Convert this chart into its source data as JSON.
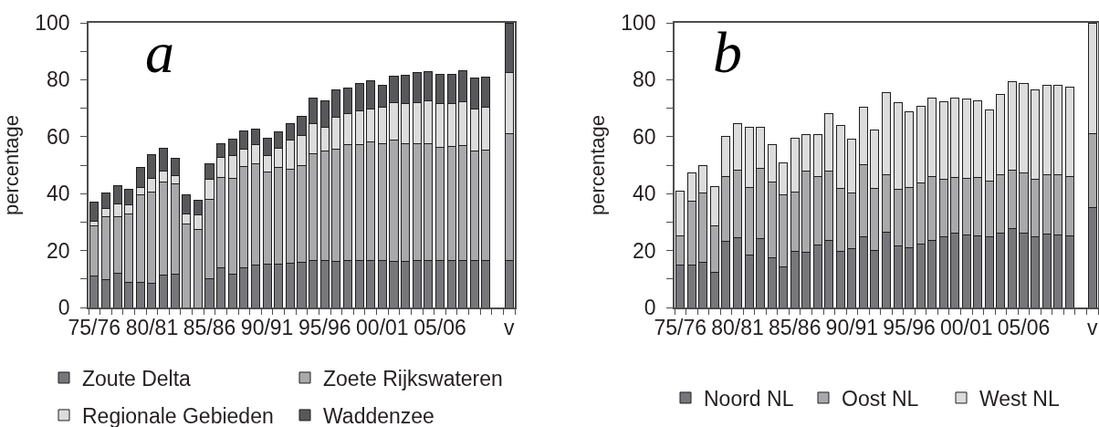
{
  "chart_data": [
    {
      "type": "bar",
      "title": "a",
      "ylabel": "percentage",
      "stacked": true,
      "legend": "bottom",
      "categories": [
        "75/76",
        null,
        null,
        null,
        null,
        "80/81",
        null,
        null,
        null,
        null,
        "85/86",
        null,
        null,
        null,
        null,
        "90/91",
        null,
        null,
        null,
        null,
        "95/96",
        null,
        null,
        null,
        null,
        "00/01",
        null,
        null,
        null,
        null,
        "05/06",
        null,
        null,
        null,
        null,
        null,
        "v"
      ],
      "series": [
        {
          "name": "Zoute Delta",
          "color": "#77777b",
          "values": [
            11.0,
            9.9,
            12.1,
            8.8,
            8.8,
            8.4,
            11.4,
            11.8,
            null,
            null,
            10.2,
            14.1,
            11.7,
            13.8,
            14.9,
            15.2,
            15.3,
            15.7,
            15.9,
            16.5,
            16.6,
            16.1,
            16.4,
            16.4,
            16.5,
            16.5,
            16.3,
            16.3,
            16.5,
            16.6,
            16.5,
            16.4,
            16.4,
            16.5,
            16.5,
            null,
            16.5
          ]
        },
        {
          "name": "Zoete Rijkswateren",
          "color": "#a9a9ac",
          "values": [
            17.7,
            22.0,
            19.8,
            24.0,
            30.8,
            32.3,
            32.8,
            31.5,
            29.2,
            27.3,
            27.8,
            31.6,
            33.5,
            35.6,
            35.6,
            32.4,
            34.0,
            32.7,
            34.0,
            37.6,
            38.4,
            39.6,
            40.8,
            40.9,
            41.6,
            41.1,
            42.4,
            41.1,
            41.0,
            40.8,
            39.6,
            40.2,
            40.5,
            38.4,
            38.7,
            null,
            44.5
          ]
        },
        {
          "name": "Regionale Gebieden",
          "color": "#dcdcdd",
          "values": [
            1.6,
            2.8,
            4.4,
            3.1,
            2.4,
            4.5,
            3.6,
            2.9,
            3.6,
            5.2,
            7.0,
            7.0,
            8.1,
            6.2,
            6.6,
            5.7,
            6.5,
            10.3,
            10.6,
            10.4,
            8.3,
            11.1,
            11.0,
            11.8,
            11.7,
            12.7,
            13.4,
            14.2,
            14.6,
            15.3,
            15.5,
            15.0,
            15.5,
            14.9,
            15.3,
            null,
            21.5
          ]
        },
        {
          "name": "Waddenzee",
          "color": "#58585b",
          "values": [
            6.7,
            5.4,
            6.5,
            5.6,
            7.3,
            8.6,
            8.0,
            6.2,
            6.7,
            5.3,
            5.5,
            4.8,
            5.8,
            6.5,
            5.6,
            6.2,
            6.0,
            5.8,
            6.8,
            9.0,
            9.4,
            9.8,
            8.8,
            9.6,
            9.9,
            7.9,
            9.0,
            10.1,
            10.5,
            10.1,
            10.4,
            10.4,
            10.7,
            10.9,
            10.5,
            null,
            17.5
          ]
        }
      ],
      "ylim": [
        0,
        100
      ],
      "yticks": [
        0,
        {
          "value": 10,
          "label": null
        },
        20,
        {
          "value": 30,
          "label": null
        },
        40,
        {
          "value": 50,
          "label": null
        },
        60,
        {
          "value": 70,
          "label": null
        },
        80,
        {
          "value": 90,
          "label": null
        },
        100
      ]
    },
    {
      "type": "bar",
      "title": "b",
      "ylabel": "percentage",
      "stacked": true,
      "legend": "bottom",
      "categories": [
        "75/76",
        null,
        null,
        null,
        null,
        "80/81",
        null,
        null,
        null,
        null,
        "85/86",
        null,
        null,
        null,
        null,
        "90/91",
        null,
        null,
        null,
        null,
        "95/96",
        null,
        null,
        null,
        null,
        "00/01",
        null,
        null,
        null,
        null,
        "05/06",
        null,
        null,
        null,
        null,
        null,
        "v"
      ],
      "series": [
        {
          "name": "Noord NL",
          "color": "#77777b",
          "values": [
            14.8,
            14.8,
            15.8,
            12.3,
            23.2,
            24.5,
            18.5,
            24.2,
            17.6,
            14.3,
            19.7,
            19.3,
            22.1,
            23.7,
            19.6,
            20.7,
            24.8,
            20.0,
            26.3,
            21.6,
            21.1,
            22.4,
            23.6,
            24.8,
            26.1,
            25.6,
            25.2,
            24.7,
            26.1,
            27.6,
            26.2,
            24.9,
            25.9,
            25.6,
            25.1,
            null,
            35.0
          ]
        },
        {
          "name": "Oost NL",
          "color": "#a9a9ac",
          "values": [
            10.3,
            22.6,
            24.4,
            16.4,
            22.8,
            23.6,
            23.5,
            24.6,
            26.6,
            25.3,
            20.7,
            28.5,
            23.9,
            24.2,
            22.1,
            19.5,
            25.5,
            21.7,
            20.4,
            20.0,
            21.1,
            21.5,
            22.4,
            20.1,
            19.5,
            19.7,
            20.6,
            19.8,
            20.5,
            20.6,
            21.1,
            20.1,
            20.7,
            20.9,
            20.9,
            null,
            26.2
          ]
        },
        {
          "name": "West NL",
          "color": "#dcdcdd",
          "values": [
            15.8,
            9.9,
            9.7,
            13.8,
            14.2,
            16.6,
            21.3,
            14.5,
            13.1,
            11.2,
            19.0,
            12.9,
            14.7,
            20.2,
            22.3,
            18.8,
            20.0,
            20.7,
            28.7,
            30.2,
            26.4,
            26.9,
            27.7,
            27.3,
            28.0,
            28.0,
            26.7,
            25.0,
            28.1,
            31.2,
            31.3,
            31.5,
            31.5,
            31.5,
            31.4,
            null,
            38.8
          ]
        }
      ],
      "ylim": [
        0,
        100
      ],
      "yticks": [
        0,
        {
          "value": 10,
          "label": null
        },
        20,
        {
          "value": 30,
          "label": null
        },
        40,
        {
          "value": 50,
          "label": null
        },
        60,
        {
          "value": 70,
          "label": null
        },
        80,
        {
          "value": 90,
          "label": null
        },
        100
      ]
    }
  ]
}
